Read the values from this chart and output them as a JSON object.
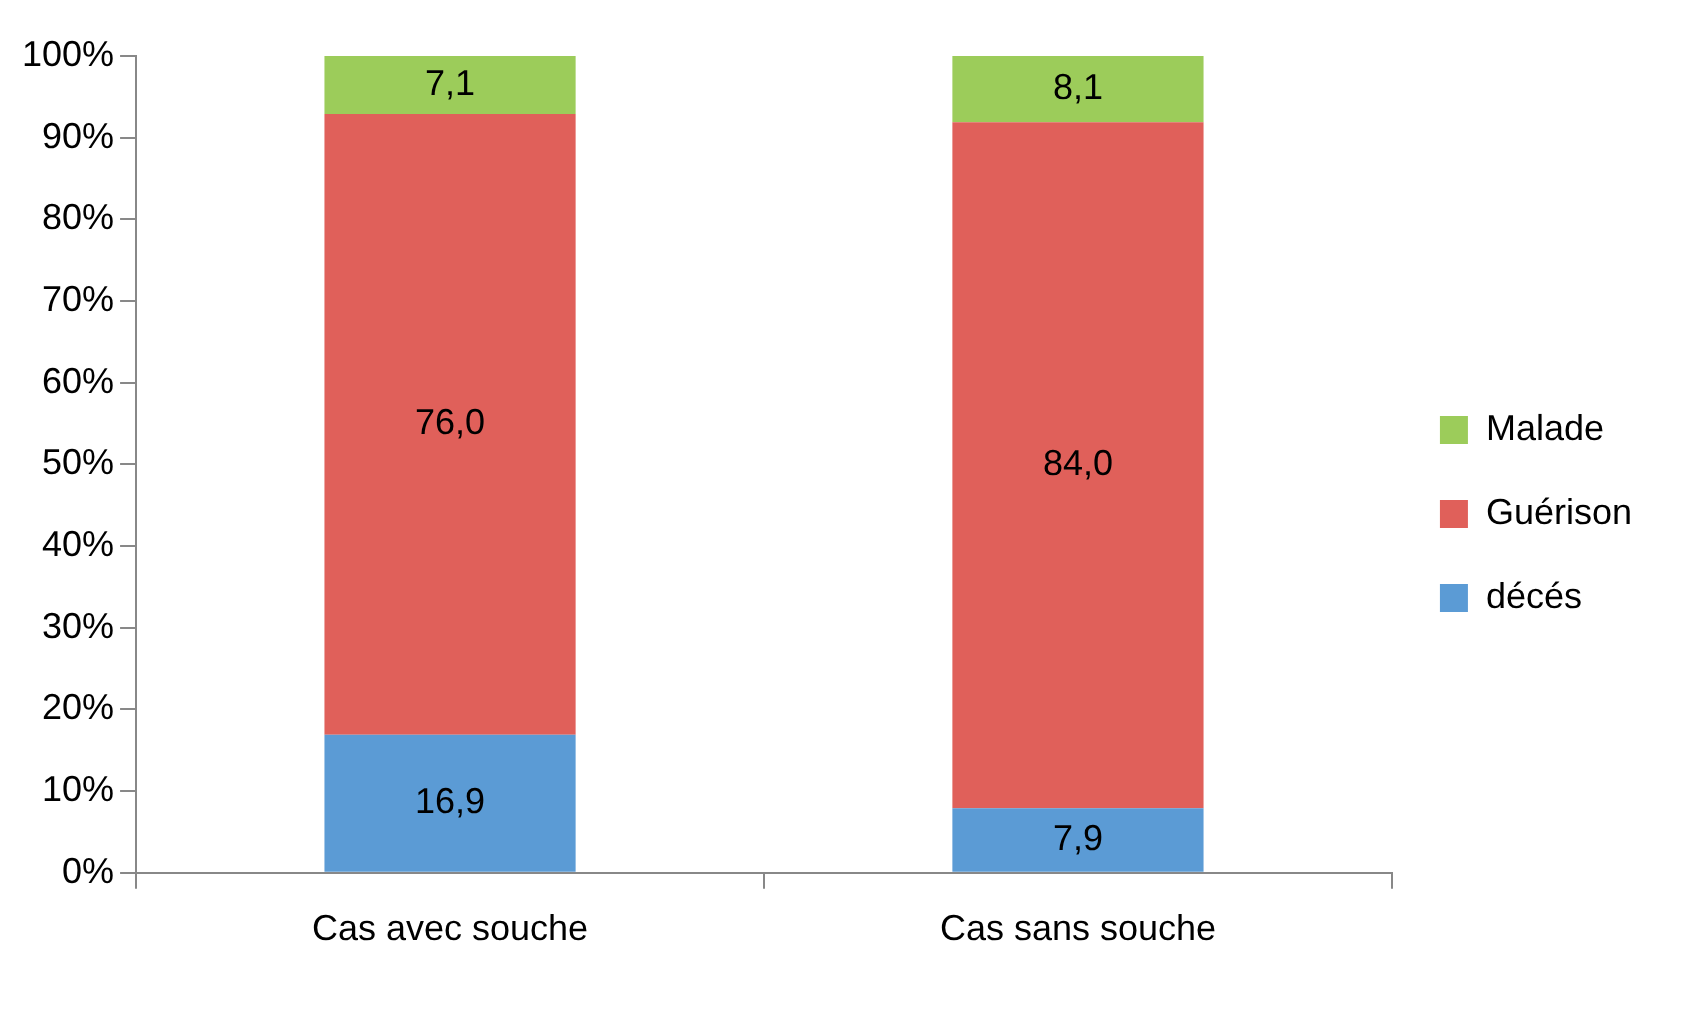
{
  "chart_data": {
    "type": "bar",
    "stacked": true,
    "categories": [
      "Cas avec souche",
      "Cas sans souche"
    ],
    "series": [
      {
        "name": "décés",
        "color": "#5b9bd5",
        "values": [
          16.9,
          7.9
        ],
        "value_labels": [
          "16,9",
          "7,9"
        ]
      },
      {
        "name": "Guérison",
        "color": "#e0605a",
        "values": [
          76.0,
          84.0
        ],
        "value_labels": [
          "76,0",
          "84,0"
        ]
      },
      {
        "name": "Malade",
        "color": "#9ccc5a",
        "values": [
          7.1,
          8.1
        ],
        "value_labels": [
          "7,1",
          "8,1"
        ]
      }
    ],
    "ylim": [
      0,
      100
    ],
    "yticks": [
      {
        "value": 0,
        "label": "0%"
      },
      {
        "value": 10,
        "label": "10%"
      },
      {
        "value": 20,
        "label": "20%"
      },
      {
        "value": 30,
        "label": "30%"
      },
      {
        "value": 40,
        "label": "40%"
      },
      {
        "value": 50,
        "label": "50%"
      },
      {
        "value": 60,
        "label": "60%"
      },
      {
        "value": 70,
        "label": "70%"
      },
      {
        "value": 80,
        "label": "80%"
      },
      {
        "value": 90,
        "label": "90%"
      },
      {
        "value": 100,
        "label": "100%"
      }
    ],
    "grid": false,
    "legend": "right"
  }
}
